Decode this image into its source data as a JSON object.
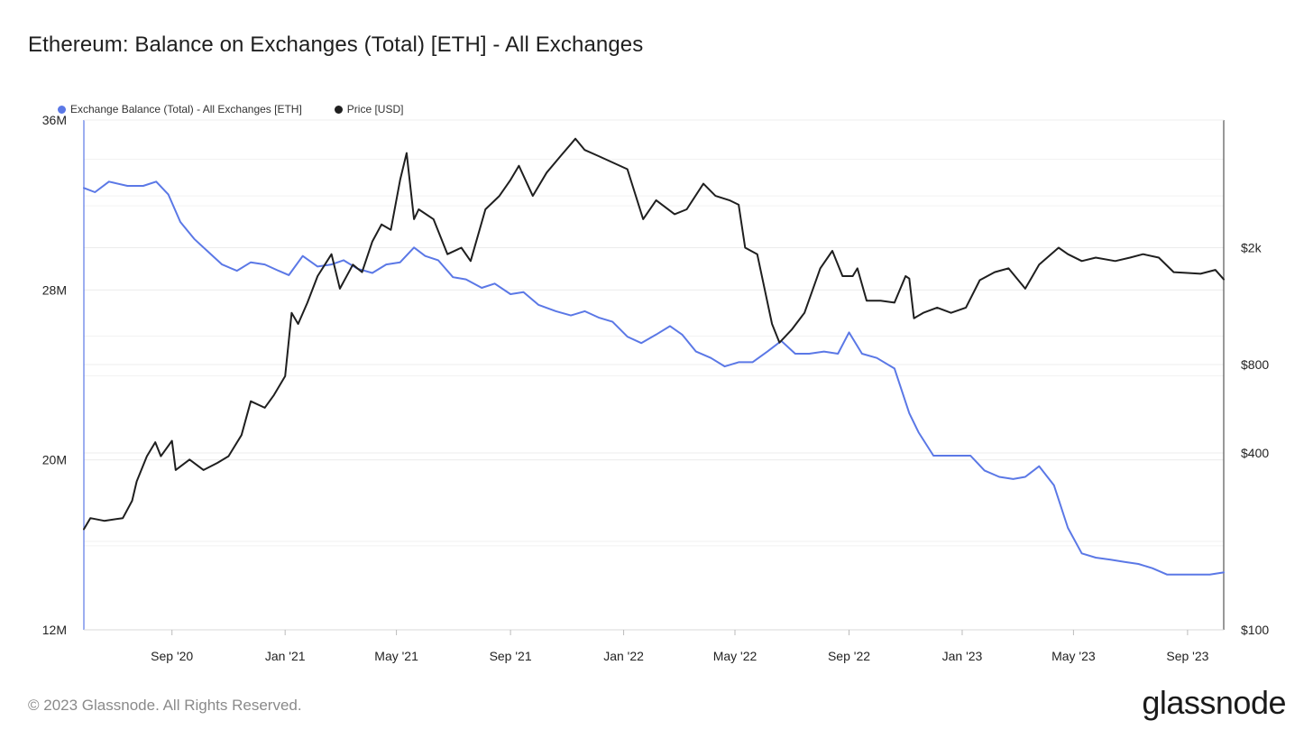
{
  "title": "Ethereum: Balance on Exchanges (Total) [ETH] - All Exchanges",
  "footer": "© 2023 Glassnode. All Rights Reserved.",
  "brand": "glassnode",
  "legend": [
    {
      "label": "Exchange Balance (Total) - All Exchanges [ETH]",
      "color": "#5b78e6"
    },
    {
      "label": "Price [USD]",
      "color": "#1f1f1f"
    }
  ],
  "chart_data": {
    "type": "line",
    "title": "Ethereum: Balance on Exchanges (Total) [ETH] - All Exchanges",
    "x_ticks": [
      "Sep '20",
      "Jan '21",
      "May '21",
      "Sep '21",
      "Jan '22",
      "May '22",
      "Sep '22",
      "Jan '23",
      "May '23",
      "Sep '23"
    ],
    "x_tick_dates": [
      "2020-09-01",
      "2021-01-01",
      "2021-05-01",
      "2021-09-01",
      "2022-01-01",
      "2022-05-01",
      "2022-09-01",
      "2023-01-01",
      "2023-05-01",
      "2023-09-01"
    ],
    "xlim": [
      "2020-05-29",
      "2023-10-10"
    ],
    "y_left": {
      "ticks": [
        "12M",
        "20M",
        "28M",
        "36M"
      ],
      "tick_values": [
        12000000,
        20000000,
        28000000,
        36000000
      ],
      "lim": [
        12000000,
        36000000
      ],
      "scale": "linear"
    },
    "y_right": {
      "ticks": [
        "$100",
        "$400",
        "$800",
        "$2k"
      ],
      "tick_values": [
        100,
        400,
        800,
        2000
      ],
      "scale": "log"
    },
    "grid": true,
    "legend_position": "top-left",
    "series": [
      {
        "name": "Exchange Balance (Total) - All Exchanges [ETH]",
        "axis": "left",
        "color": "#5b78e6",
        "x": [
          "2020-05-29",
          "2020-06-10",
          "2020-06-25",
          "2020-07-15",
          "2020-08-01",
          "2020-08-15",
          "2020-08-28",
          "2020-09-10",
          "2020-09-25",
          "2020-10-10",
          "2020-10-25",
          "2020-11-10",
          "2020-11-25",
          "2020-12-10",
          "2020-12-25",
          "2021-01-05",
          "2021-01-20",
          "2021-02-05",
          "2021-02-20",
          "2021-03-05",
          "2021-03-20",
          "2021-04-05",
          "2021-04-20",
          "2021-05-05",
          "2021-05-20",
          "2021-06-01",
          "2021-06-15",
          "2021-07-01",
          "2021-07-15",
          "2021-08-01",
          "2021-08-15",
          "2021-09-01",
          "2021-09-15",
          "2021-10-01",
          "2021-10-20",
          "2021-11-05",
          "2021-11-20",
          "2021-12-05",
          "2021-12-20",
          "2022-01-05",
          "2022-01-20",
          "2022-02-05",
          "2022-02-20",
          "2022-03-05",
          "2022-03-20",
          "2022-04-05",
          "2022-04-20",
          "2022-05-05",
          "2022-05-20",
          "2022-06-05",
          "2022-06-20",
          "2022-07-05",
          "2022-07-20",
          "2022-08-05",
          "2022-08-20",
          "2022-09-01",
          "2022-09-15",
          "2022-10-01",
          "2022-10-20",
          "2022-11-05",
          "2022-11-15",
          "2022-12-01",
          "2022-12-20",
          "2023-01-10",
          "2023-01-25",
          "2023-02-10",
          "2023-02-25",
          "2023-03-10",
          "2023-03-25",
          "2023-04-10",
          "2023-04-25",
          "2023-05-10",
          "2023-05-25",
          "2023-06-10",
          "2023-06-25",
          "2023-07-10",
          "2023-07-25",
          "2023-08-10",
          "2023-08-25",
          "2023-09-10",
          "2023-09-25",
          "2023-10-10"
        ],
        "values": [
          32.8,
          32.6,
          33.1,
          32.9,
          32.9,
          33.1,
          32.5,
          31.2,
          30.4,
          29.8,
          29.2,
          28.9,
          29.3,
          29.2,
          28.9,
          28.7,
          29.6,
          29.1,
          29.2,
          29.4,
          29.0,
          28.8,
          29.2,
          29.3,
          30.0,
          29.6,
          29.4,
          28.6,
          28.5,
          28.1,
          28.3,
          27.8,
          27.9,
          27.3,
          27.0,
          26.8,
          27.0,
          26.7,
          26.5,
          25.8,
          25.5,
          25.9,
          26.3,
          25.9,
          25.1,
          24.8,
          24.4,
          24.6,
          24.6,
          25.1,
          25.6,
          25.0,
          25.0,
          25.1,
          25.0,
          26.0,
          25.0,
          24.8,
          24.3,
          22.2,
          21.3,
          20.2,
          20.2,
          20.2,
          19.5,
          19.2,
          19.1,
          19.2,
          19.7,
          18.8,
          16.8,
          15.6,
          15.4,
          15.3,
          15.2,
          15.1,
          14.9,
          14.6,
          14.6,
          14.6,
          14.6,
          14.7
        ]
      },
      {
        "name": "Price [USD]",
        "axis": "right",
        "color": "#1f1f1f",
        "x": [
          "2020-05-29",
          "2020-06-05",
          "2020-06-20",
          "2020-07-10",
          "2020-07-20",
          "2020-07-25",
          "2020-08-05",
          "2020-08-14",
          "2020-08-20",
          "2020-09-01",
          "2020-09-05",
          "2020-09-20",
          "2020-10-05",
          "2020-10-20",
          "2020-11-01",
          "2020-11-15",
          "2020-11-25",
          "2020-12-10",
          "2020-12-20",
          "2021-01-01",
          "2021-01-08",
          "2021-01-15",
          "2021-01-25",
          "2021-02-05",
          "2021-02-20",
          "2021-03-01",
          "2021-03-15",
          "2021-03-25",
          "2021-04-05",
          "2021-04-15",
          "2021-04-25",
          "2021-05-05",
          "2021-05-12",
          "2021-05-20",
          "2021-05-25",
          "2021-06-10",
          "2021-06-25",
          "2021-07-10",
          "2021-07-20",
          "2021-08-05",
          "2021-08-20",
          "2021-09-01",
          "2021-09-10",
          "2021-09-25",
          "2021-10-10",
          "2021-10-25",
          "2021-11-10",
          "2021-11-20",
          "2021-12-05",
          "2021-12-20",
          "2022-01-05",
          "2022-01-22",
          "2022-02-05",
          "2022-02-25",
          "2022-03-10",
          "2022-03-28",
          "2022-04-10",
          "2022-04-25",
          "2022-05-05",
          "2022-05-12",
          "2022-05-25",
          "2022-06-10",
          "2022-06-18",
          "2022-07-01",
          "2022-07-15",
          "2022-08-01",
          "2022-08-14",
          "2022-08-25",
          "2022-09-05",
          "2022-09-10",
          "2022-09-20",
          "2022-10-05",
          "2022-10-20",
          "2022-11-01",
          "2022-11-05",
          "2022-11-10",
          "2022-11-20",
          "2022-12-05",
          "2022-12-20",
          "2023-01-05",
          "2023-01-20",
          "2023-02-05",
          "2023-02-20",
          "2023-03-10",
          "2023-03-25",
          "2023-04-15",
          "2023-04-25",
          "2023-05-10",
          "2023-05-25",
          "2023-06-15",
          "2023-07-01",
          "2023-07-15",
          "2023-08-01",
          "2023-08-17",
          "2023-09-01",
          "2023-09-15",
          "2023-10-01",
          "2023-10-10"
        ],
        "values": [
          220,
          240,
          235,
          240,
          275,
          320,
          390,
          435,
          390,
          440,
          350,
          380,
          350,
          370,
          390,
          460,
          600,
          570,
          630,
          730,
          1200,
          1100,
          1300,
          1600,
          1900,
          1450,
          1750,
          1650,
          2100,
          2400,
          2300,
          3400,
          4200,
          2500,
          2700,
          2500,
          1900,
          2000,
          1800,
          2700,
          3000,
          3400,
          3800,
          3000,
          3600,
          4100,
          4700,
          4300,
          4100,
          3900,
          3700,
          2500,
          2900,
          2600,
          2700,
          3300,
          3000,
          2900,
          2800,
          2000,
          1900,
          1100,
          950,
          1050,
          1200,
          1700,
          1950,
          1600,
          1600,
          1700,
          1320,
          1320,
          1300,
          1600,
          1570,
          1150,
          1200,
          1250,
          1200,
          1250,
          1550,
          1650,
          1700,
          1450,
          1750,
          2000,
          1900,
          1800,
          1850,
          1800,
          1850,
          1900,
          1850,
          1650,
          1640,
          1630,
          1680,
          1560
        ]
      }
    ]
  }
}
